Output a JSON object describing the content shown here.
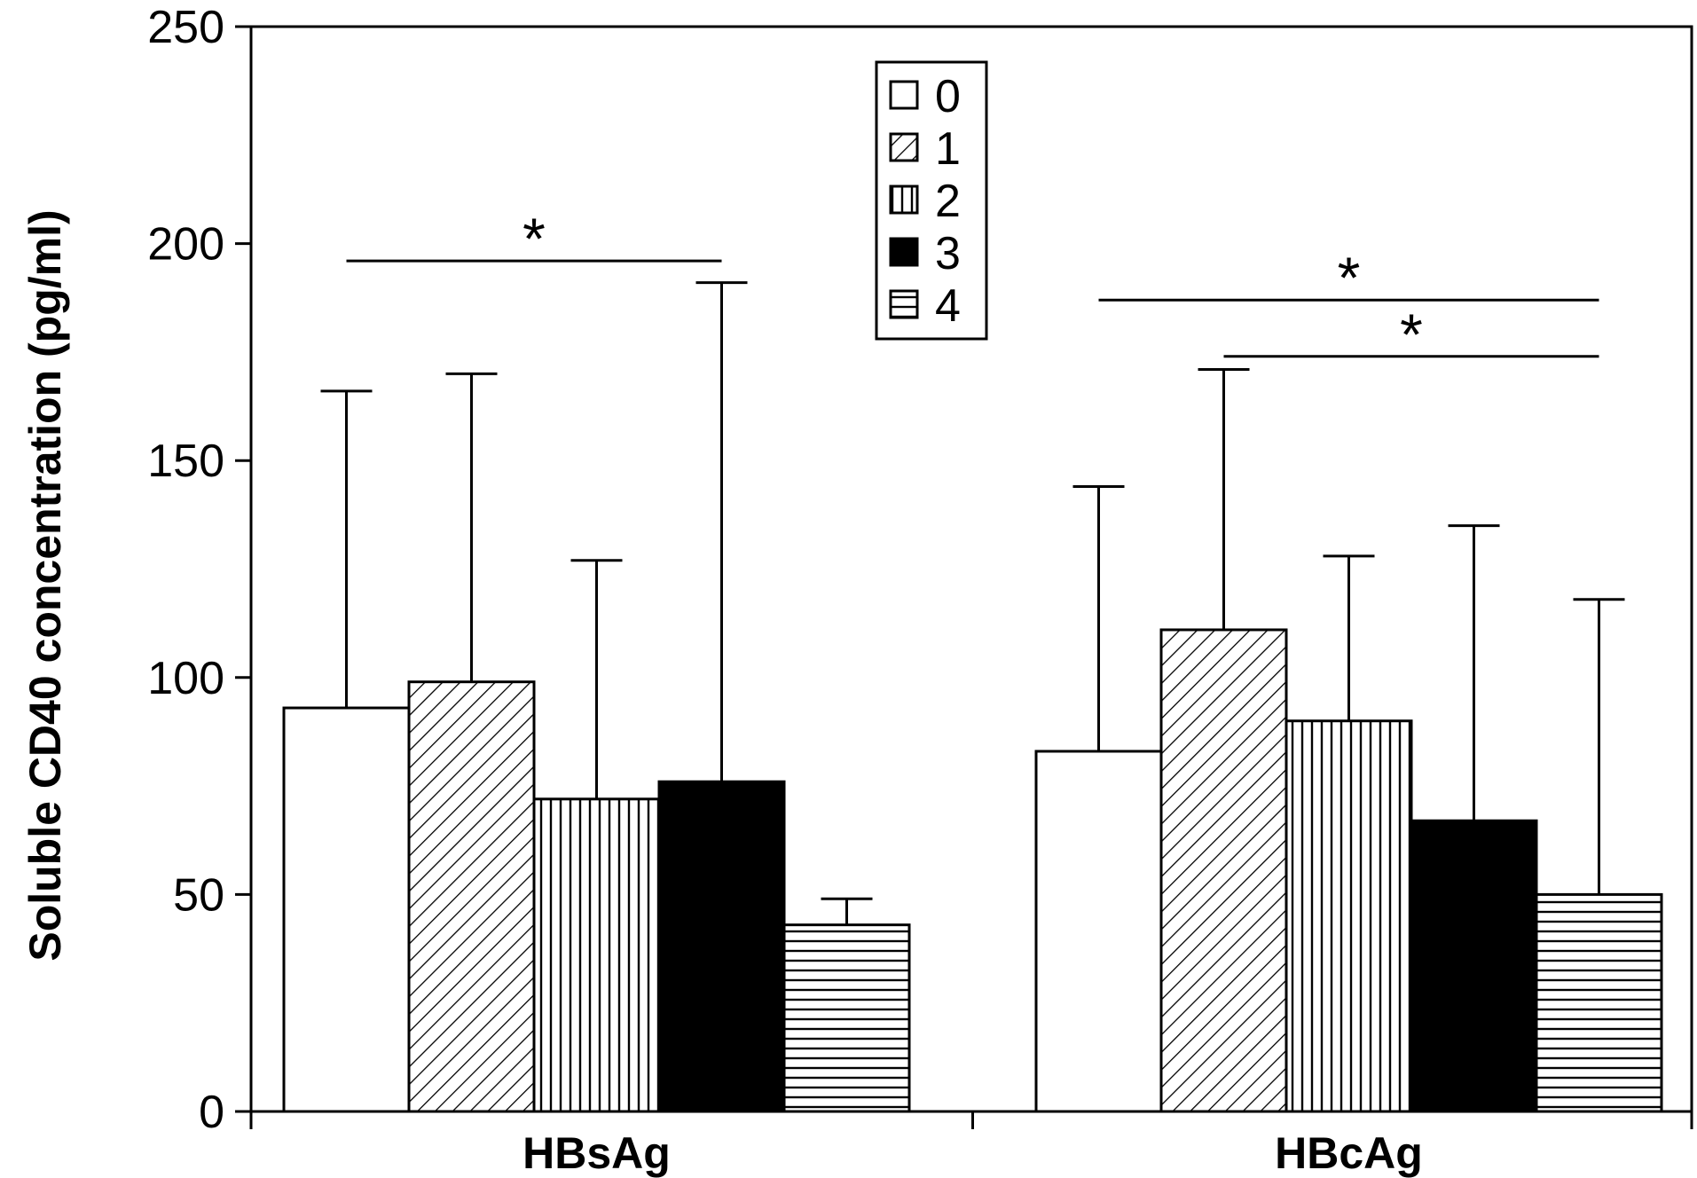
{
  "chart_data": {
    "type": "bar",
    "title": "",
    "xlabel": "",
    "ylabel": "Soluble CD40 concentration (pg/ml)",
    "ylim": [
      0,
      250
    ],
    "yticks": [
      0,
      50,
      100,
      150,
      200,
      250
    ],
    "categories": [
      "HBsAg",
      "HBcAg"
    ],
    "grid": false,
    "legend_position": "top-center",
    "series": [
      {
        "name": "0",
        "pattern": "white",
        "values": [
          93,
          83
        ],
        "error_upper": [
          166,
          144
        ]
      },
      {
        "name": "1",
        "pattern": "diagonal-hatch",
        "values": [
          99,
          111
        ],
        "error_upper": [
          170,
          171
        ]
      },
      {
        "name": "2",
        "pattern": "vertical-lines",
        "values": [
          72,
          90
        ],
        "error_upper": [
          127,
          128
        ]
      },
      {
        "name": "3",
        "pattern": "solid-black",
        "values": [
          76,
          67
        ],
        "error_upper": [
          191,
          135
        ]
      },
      {
        "name": "4",
        "pattern": "horizontal-lines",
        "values": [
          43,
          50
        ],
        "error_upper": [
          49,
          118
        ]
      }
    ],
    "significance": [
      {
        "category": "HBsAg",
        "from_series": "0",
        "to_series": "3",
        "y": 196,
        "label": "*"
      },
      {
        "category": "HBcAg",
        "from_series": "0",
        "to_series": "4",
        "y": 187,
        "label": "*"
      },
      {
        "category": "HBcAg",
        "from_series": "1",
        "to_series": "4",
        "y": 174,
        "label": "*"
      }
    ]
  }
}
